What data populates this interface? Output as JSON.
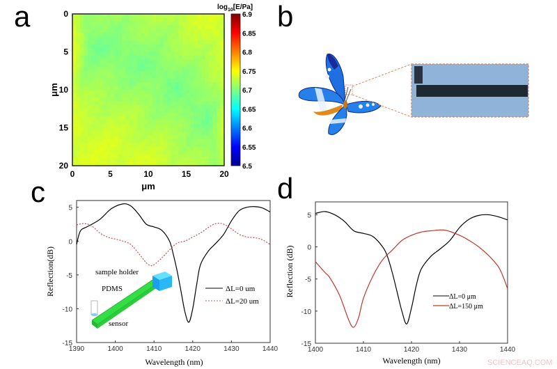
{
  "panel_labels": {
    "a": "a",
    "b": "b",
    "c": "c",
    "d": "d"
  },
  "watermark": "SCIENCEAQ.COM",
  "chart_data": [
    {
      "panel": "a",
      "type": "heatmap",
      "xlabel": "μm",
      "ylabel": "μm",
      "xlim": [
        0,
        20
      ],
      "ylim": [
        0,
        20
      ],
      "xticks": [
        "0",
        "5",
        "10",
        "15",
        "20"
      ],
      "yticks": [
        "0",
        "5",
        "10",
        "15",
        "20"
      ],
      "colorbar": {
        "title_base": "log",
        "title_sub": "10",
        "title_rest": "[E/Pa]",
        "range": [
          6.5,
          6.9
        ],
        "ticks": [
          "6.9",
          "6.85",
          "6.8",
          "6.75",
          "6.7",
          "6.65",
          "6.6",
          "6.55",
          "6.5"
        ],
        "colormap": "jet"
      },
      "value_range_shown": [
        6.69,
        6.76
      ]
    },
    {
      "panel": "b",
      "type": "image",
      "description_colors": {
        "wing": "#2a7be8",
        "inset_bg": "#8fb3d9",
        "strip": "#1e2a33",
        "callout": "#d9845a"
      }
    },
    {
      "panel": "c",
      "type": "line",
      "xlabel": "Wavelength (nm)",
      "ylabel": "Reflection(dB)",
      "xlim": [
        1390,
        1440
      ],
      "ylim": [
        -15,
        6
      ],
      "xticks": [
        "1390",
        "1400",
        "1410",
        "1420",
        "1430",
        "1440"
      ],
      "yticks": [
        "5",
        "0",
        "-5",
        "-10",
        "-15"
      ],
      "legend_position": "right",
      "inset_labels": {
        "holder": "sample holder",
        "pdms": "PDMS",
        "sensor": "sensor"
      },
      "series": [
        {
          "name": "ΔL=0 um",
          "color": "#000000",
          "style": "solid",
          "x": [
            1390,
            1391,
            1393,
            1396,
            1399,
            1402,
            1404,
            1406,
            1408,
            1410,
            1412,
            1414,
            1415,
            1416,
            1417,
            1418,
            1419,
            1420,
            1421,
            1422,
            1424,
            1426,
            1428,
            1430,
            1432,
            1434,
            1436,
            1438,
            1440
          ],
          "y": [
            -0.5,
            1.5,
            2.2,
            3.2,
            4.8,
            5.5,
            5.2,
            4,
            2.5,
            2.1,
            1.6,
            0,
            -2,
            -4.5,
            -7.5,
            -10.5,
            -12,
            -10,
            -6.5,
            -3.5,
            -1.5,
            -0.3,
            1,
            3,
            4.5,
            5,
            5.1,
            4.9,
            4.3
          ]
        },
        {
          "name": "ΔL=20 um",
          "color": "#c0504d",
          "style": "dashed",
          "x": [
            1390,
            1392,
            1394,
            1396,
            1398,
            1400,
            1402,
            1404,
            1406,
            1408,
            1409,
            1410,
            1412,
            1414,
            1416,
            1418,
            1420,
            1422,
            1424,
            1426,
            1428,
            1430,
            1432,
            1434,
            1436,
            1438,
            1440
          ],
          "y": [
            2.4,
            2.6,
            2.2,
            1.2,
            0.6,
            0.3,
            0,
            -0.5,
            -1.8,
            -3.2,
            -3.6,
            -3.5,
            -2.5,
            -1.3,
            -0.3,
            0,
            0.6,
            1.2,
            2,
            2.6,
            2.5,
            1.8,
            1,
            0.6,
            0.5,
            0.2,
            -0.5
          ]
        }
      ]
    },
    {
      "panel": "d",
      "type": "line",
      "xlabel": "Wavelength (nm)",
      "ylabel": "Reflection (dB)",
      "xlim": [
        1400,
        1440
      ],
      "ylim": [
        -15,
        7
      ],
      "xticks": [
        "1400",
        "1410",
        "1420",
        "1430",
        "1440"
      ],
      "yticks": [
        "5",
        "0",
        "-5",
        "-10",
        "-15"
      ],
      "legend_position": "lower-right",
      "series": [
        {
          "name": "ΔL=0 μm",
          "color": "#000000",
          "style": "solid",
          "x": [
            1400,
            1402,
            1404,
            1406,
            1408,
            1410,
            1412,
            1414,
            1415,
            1416,
            1417,
            1418,
            1419,
            1420,
            1421,
            1422,
            1424,
            1426,
            1428,
            1430,
            1432,
            1434,
            1436,
            1438,
            1440
          ],
          "y": [
            5.2,
            5.5,
            5,
            4,
            2.5,
            2.1,
            1.6,
            0,
            -1.5,
            -4,
            -7,
            -10,
            -12,
            -9.5,
            -6,
            -3.5,
            -1.5,
            -0.3,
            1,
            3,
            4.3,
            4.9,
            5,
            4.7,
            4.2
          ]
        },
        {
          "name": "ΔL=150 μm",
          "color": "#c0392b",
          "style": "solid",
          "x": [
            1400,
            1402,
            1403,
            1405,
            1407,
            1408,
            1409,
            1410,
            1412,
            1414,
            1416,
            1418,
            1420,
            1422,
            1424,
            1427,
            1430,
            1432,
            1434,
            1436,
            1438,
            1439,
            1440
          ],
          "y": [
            -2.3,
            -4,
            -4.8,
            -7.5,
            -11.5,
            -12.5,
            -11,
            -8,
            -4.5,
            -2,
            -0.5,
            1,
            1.8,
            2.3,
            2.5,
            2.6,
            1.8,
            1,
            0,
            -1.3,
            -3,
            -4.5,
            -6.5
          ]
        }
      ]
    }
  ]
}
